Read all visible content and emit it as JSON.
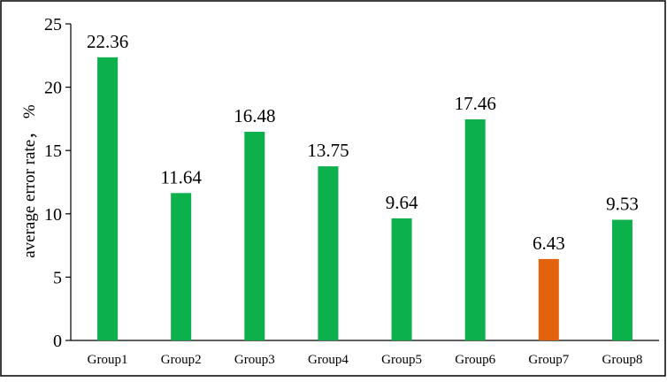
{
  "chart_data": {
    "type": "bar",
    "categories": [
      "Group1",
      "Group2",
      "Group3",
      "Group4",
      "Group5",
      "Group6",
      "Group7",
      "Group8"
    ],
    "values": [
      22.36,
      11.64,
      16.48,
      13.75,
      9.64,
      17.46,
      6.43,
      9.53
    ],
    "data_labels": [
      "22.36",
      "11.64",
      "16.48",
      "13.75",
      "9.64",
      "17.46",
      "6.43",
      "9.53"
    ],
    "bar_colors": [
      "#0db14b",
      "#0db14b",
      "#0db14b",
      "#0db14b",
      "#0db14b",
      "#0db14b",
      "#e2620d",
      "#0db14b"
    ],
    "ylabel": "average error rate， %",
    "xlabel": "",
    "ylim": [
      0,
      25
    ],
    "yticks": [
      0,
      5,
      10,
      15,
      20,
      25
    ],
    "ytick_labels": [
      "0",
      "5",
      "10",
      "15",
      "20",
      "25"
    ],
    "grid": false,
    "legend": "none"
  }
}
